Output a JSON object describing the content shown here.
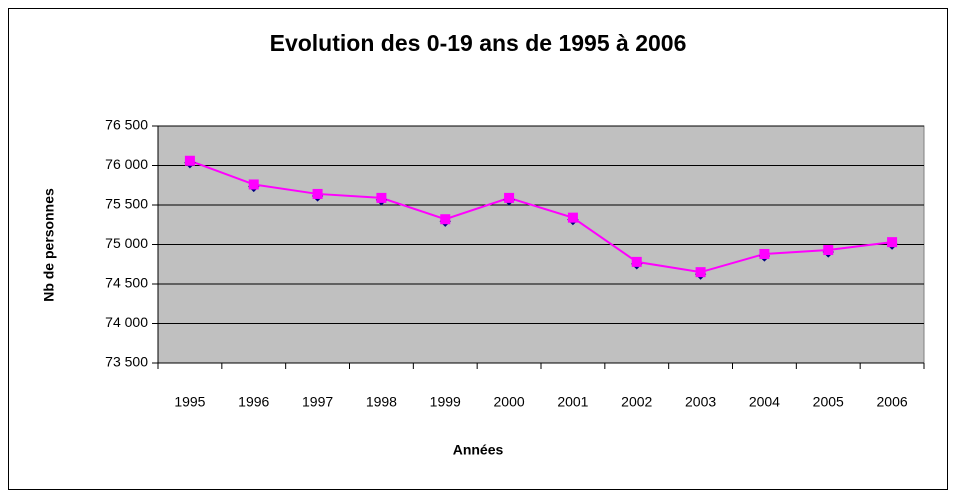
{
  "chart_data": {
    "type": "line",
    "title": "Evolution des 0-19 ans de 1995 à 2006",
    "x_label": "Années",
    "y_label": "Nb de personnes",
    "categories": [
      "1995",
      "1996",
      "1997",
      "1998",
      "1999",
      "2000",
      "2001",
      "2002",
      "2003",
      "2004",
      "2005",
      "2006"
    ],
    "series": [
      {
        "name": "0-19 ans",
        "color": "#ff00ff",
        "values": [
          76060,
          75760,
          75640,
          75590,
          75320,
          75590,
          75340,
          74780,
          74650,
          74880,
          74930,
          75030
        ]
      }
    ],
    "ylim": [
      73500,
      76500
    ],
    "yticks": [
      {
        "value": 73500,
        "label": "73 500"
      },
      {
        "value": 74000,
        "label": "74 000"
      },
      {
        "value": 74500,
        "label": "74 500"
      },
      {
        "value": 75000,
        "label": "75 000"
      },
      {
        "value": 75500,
        "label": "75 500"
      },
      {
        "value": 76000,
        "label": "76 000"
      },
      {
        "value": 76500,
        "label": "76 500"
      }
    ],
    "grid": true,
    "plot_background": "#c0c0c0"
  }
}
